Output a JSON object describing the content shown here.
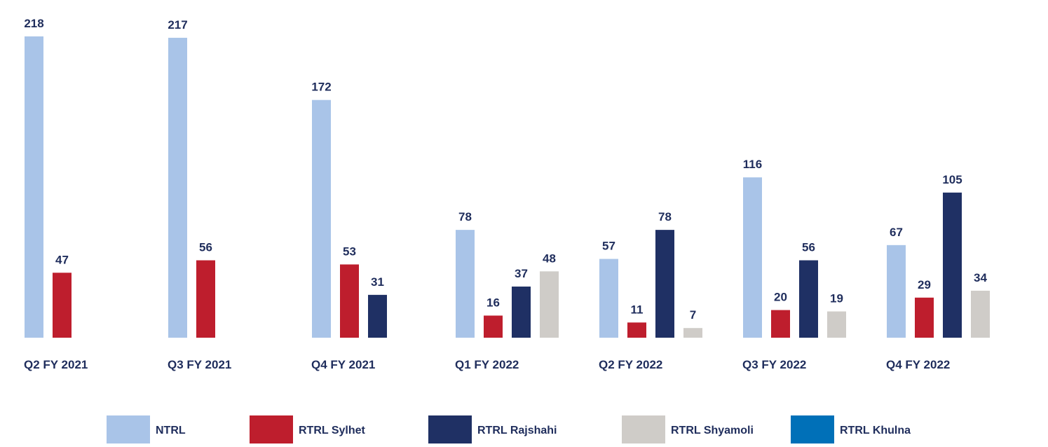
{
  "chart_data": {
    "type": "bar",
    "categories": [
      "Q2 FY 2021",
      "Q3 FY 2021",
      "Q4 FY 2021",
      "Q1 FY 2022",
      "Q2 FY 2022",
      "Q3 FY 2022",
      "Q4 FY 2022"
    ],
    "series": [
      {
        "name": "NTRL",
        "color": "#a9c4e8",
        "values": [
          218,
          217,
          172,
          78,
          57,
          116,
          67
        ]
      },
      {
        "name": "RTRL Sylhet",
        "color": "#be1e2d",
        "values": [
          47,
          56,
          53,
          16,
          11,
          20,
          29
        ]
      },
      {
        "name": "RTRL Rajshahi",
        "color": "#1f3064",
        "values": [
          null,
          null,
          31,
          37,
          78,
          56,
          105
        ]
      },
      {
        "name": "RTRL Shyamoli",
        "color": "#cfccc8",
        "values": [
          null,
          null,
          null,
          48,
          7,
          19,
          34
        ]
      },
      {
        "name": "RTRL Khulna",
        "color": "#0070b8",
        "values": [
          null,
          null,
          null,
          null,
          null,
          null,
          null
        ]
      }
    ],
    "ylim": [
      0,
      220
    ],
    "legend": "bottom"
  }
}
